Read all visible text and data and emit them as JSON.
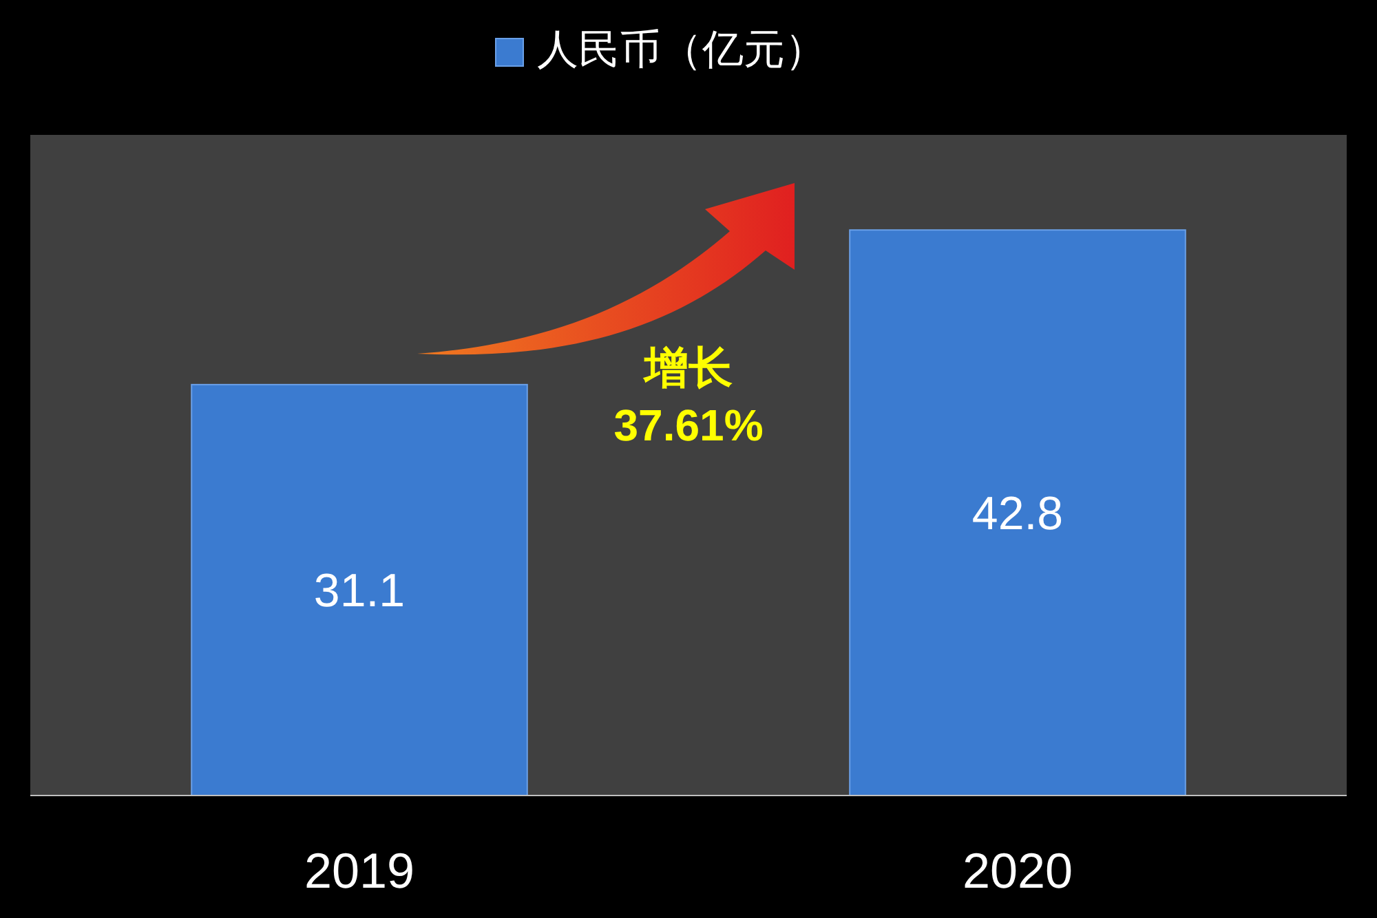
{
  "chart_data": {
    "type": "bar",
    "categories": [
      "2019",
      "2020"
    ],
    "series": [
      {
        "name": "人民币（亿元）",
        "color": "#3b7bd0",
        "values": [
          31.1,
          42.8
        ]
      }
    ],
    "ylim": [
      0,
      50
    ],
    "data_labels": true,
    "legend": "top",
    "annotations": [
      "增长\n37.61%"
    ]
  }
}
